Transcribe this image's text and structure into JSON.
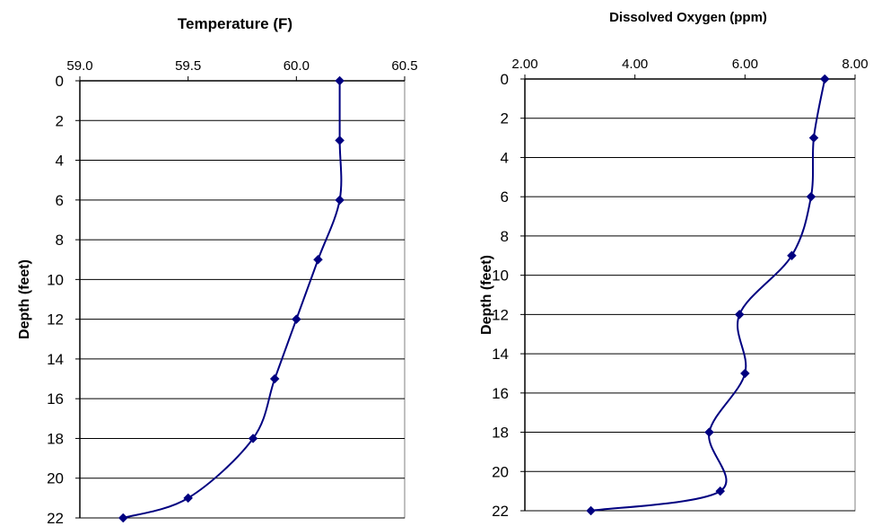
{
  "chart_data": [
    {
      "type": "line",
      "title": "Temperature (F)",
      "xlabel": "",
      "ylabel": "Depth (feet)",
      "xlim": [
        59.0,
        60.5
      ],
      "ylim": [
        0,
        22
      ],
      "y_reversed": true,
      "x_axis_position": "top",
      "x_ticks": [
        "59.0",
        "59.5",
        "60.0",
        "60.5"
      ],
      "y_ticks": [
        "0",
        "2",
        "4",
        "6",
        "8",
        "10",
        "12",
        "14",
        "16",
        "18",
        "20",
        "22"
      ],
      "grid": "horizontal",
      "line_color": "#000080",
      "x": [
        60.2,
        60.2,
        60.2,
        60.1,
        60.0,
        59.9,
        59.8,
        59.5,
        59.2
      ],
      "y": [
        0,
        3,
        6,
        9,
        12,
        15,
        18,
        21,
        22
      ]
    },
    {
      "type": "line",
      "title": "Dissolved Oxygen (ppm)",
      "xlabel": "",
      "ylabel": "Depth (feet)",
      "xlim": [
        2.0,
        8.0
      ],
      "ylim": [
        0,
        22
      ],
      "y_reversed": true,
      "x_axis_position": "top",
      "x_ticks": [
        "2.00",
        "4.00",
        "6.00",
        "8.00"
      ],
      "y_ticks": [
        "0",
        "2",
        "4",
        "6",
        "8",
        "10",
        "12",
        "14",
        "16",
        "18",
        "20",
        "22"
      ],
      "grid": "horizontal",
      "line_color": "#000080",
      "x": [
        7.45,
        7.25,
        7.2,
        6.85,
        5.9,
        6.0,
        5.35,
        5.55,
        3.2
      ],
      "y": [
        0,
        3,
        6,
        9,
        12,
        15,
        18,
        21,
        22
      ]
    }
  ]
}
